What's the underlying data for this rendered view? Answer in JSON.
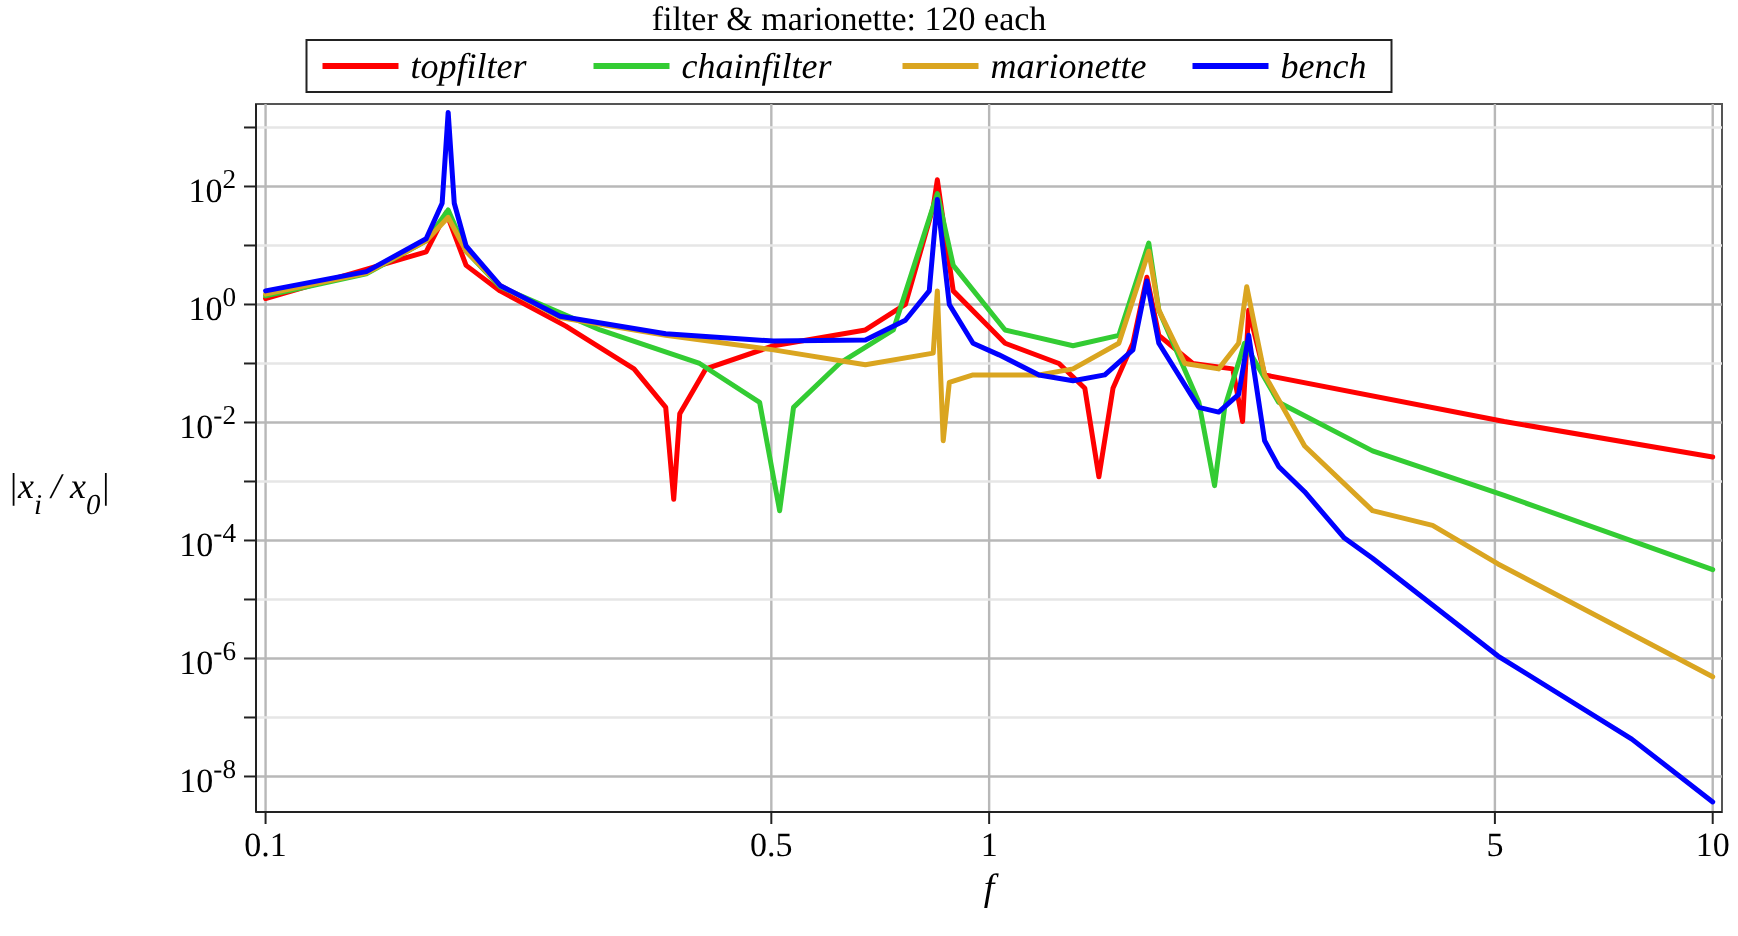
{
  "chart_data": {
    "type": "line",
    "title": "filter & marionette: 120 each",
    "xlabel": "f",
    "ylabel": "|x$_{i}$ / x$_{0}$|",
    "log": "xy",
    "grid": true,
    "legend": "top",
    "line_style": "solid",
    "marker": "none",
    "xlim": [
      0.097,
      10.3
    ],
    "xticks": [
      0.1,
      0.5,
      1,
      5,
      10
    ],
    "ylim": [
      2.5e-09,
      2500
    ],
    "yticks": [
      {
        "value": 1e-08,
        "label": "10$^{-8}$"
      },
      {
        "value": 1e-07,
        "label": null
      },
      {
        "value": 1e-06,
        "label": "10$^{-6}$"
      },
      {
        "value": 1e-05,
        "label": null
      },
      {
        "value": 0.0001,
        "label": "10$^{-4}$"
      },
      {
        "value": 0.001,
        "label": null
      },
      {
        "value": 0.01,
        "label": "10$^{-2}$"
      },
      {
        "value": 0.1,
        "label": null
      },
      {
        "value": 1,
        "label": "10$^{0}$"
      },
      {
        "value": 10,
        "label": null
      },
      {
        "value": 100,
        "label": "10$^{2}$"
      },
      {
        "value": 1000,
        "label": null
      }
    ],
    "series": [
      {
        "name": "topfilter",
        "color": "#ff0000",
        "x": [
          0.1,
          0.1667,
          0.1777,
          0.1893,
          0.2109,
          0.26,
          0.323,
          0.3573,
          0.3665,
          0.3736,
          0.4058,
          0.5036,
          0.6745,
          0.766,
          0.837,
          0.848,
          0.892,
          1.052,
          1.249,
          1.356,
          1.418,
          1.483,
          1.58,
          1.652,
          1.716,
          1.912,
          2.171,
          2.24,
          2.284,
          2.403,
          5.15,
          10
        ],
        "values": [
          1.26,
          7.8,
          36,
          4.6,
          1.7,
          0.43,
          0.081,
          0.018,
          0.0005,
          0.014,
          0.081,
          0.2,
          0.37,
          1,
          45,
          130,
          1.7,
          0.22,
          0.1,
          0.038,
          0.0012,
          0.038,
          0.22,
          2.9,
          0.3,
          0.1,
          0.081,
          0.0104,
          0.8,
          0.064,
          0.0104,
          0.0026
        ]
      },
      {
        "name": "chainfilter",
        "color": "#33cc33",
        "x": [
          0.1,
          0.1378,
          0.1667,
          0.1788,
          0.1893,
          0.2109,
          0.29,
          0.398,
          0.4817,
          0.5134,
          0.5366,
          0.621,
          0.7372,
          0.848,
          0.892,
          1.052,
          1.306,
          1.511,
          1.662,
          1.716,
          1.949,
          2.049,
          2.116,
          2.254,
          2.512,
          3.387,
          5.15,
          10
        ],
        "values": [
          1.4,
          3.3,
          12,
          40,
          8,
          2,
          0.37,
          0.1,
          0.022,
          0.00032,
          0.018,
          0.1,
          0.37,
          76,
          4.6,
          0.37,
          0.2,
          0.3,
          11,
          0.8,
          0.022,
          0.00085,
          0.018,
          0.22,
          0.022,
          0.0033,
          0.00058,
          3.2e-05
        ]
      },
      {
        "name": "marionette",
        "color": "#daa520",
        "x": [
          0.1,
          0.1378,
          0.1667,
          0.1788,
          0.1893,
          0.2109,
          0.2552,
          0.3573,
          0.5036,
          0.6745,
          0.837,
          0.848,
          0.864,
          0.881,
          0.95,
          1.172,
          1.306,
          1.511,
          1.662,
          1.716,
          1.864,
          2.076,
          2.212,
          2.27,
          2.403,
          2.729,
          3.387,
          4.1,
          5.05,
          10
        ],
        "values": [
          1.5,
          3.4,
          12,
          30,
          8,
          2.1,
          0.6,
          0.3,
          0.17,
          0.095,
          0.15,
          1.7,
          0.0049,
          0.048,
          0.064,
          0.064,
          0.081,
          0.22,
          8,
          0.8,
          0.1,
          0.081,
          0.22,
          2,
          0.064,
          0.004,
          0.00032,
          0.00018,
          4e-05,
          4.9e-07
        ]
      },
      {
        "name": "bench",
        "color": "#0000ff",
        "x": [
          0.1,
          0.1378,
          0.1667,
          0.1754,
          0.1788,
          0.1823,
          0.1893,
          0.2109,
          0.2552,
          0.3573,
          0.5036,
          0.6745,
          0.766,
          0.8265,
          0.848,
          0.881,
          0.95,
          1.032,
          1.172,
          1.306,
          1.445,
          1.58,
          1.641,
          1.652,
          1.716,
          1.949,
          2.076,
          2.212,
          2.284,
          2.328,
          2.403,
          2.512,
          2.729,
          3.097,
          3.387,
          5.05,
          7.73,
          10
        ],
        "values": [
          1.7,
          3.6,
          13,
          52,
          1800,
          52,
          9.8,
          2.1,
          0.63,
          0.32,
          0.24,
          0.25,
          0.54,
          1.7,
          60,
          1,
          0.22,
          0.14,
          0.064,
          0.051,
          0.064,
          0.17,
          1.7,
          2.5,
          0.22,
          0.018,
          0.015,
          0.03,
          0.3,
          0.064,
          0.0049,
          0.0018,
          0.00067,
          0.00011,
          5e-05,
          1.1e-06,
          4.3e-08,
          3.7e-09
        ]
      }
    ]
  }
}
